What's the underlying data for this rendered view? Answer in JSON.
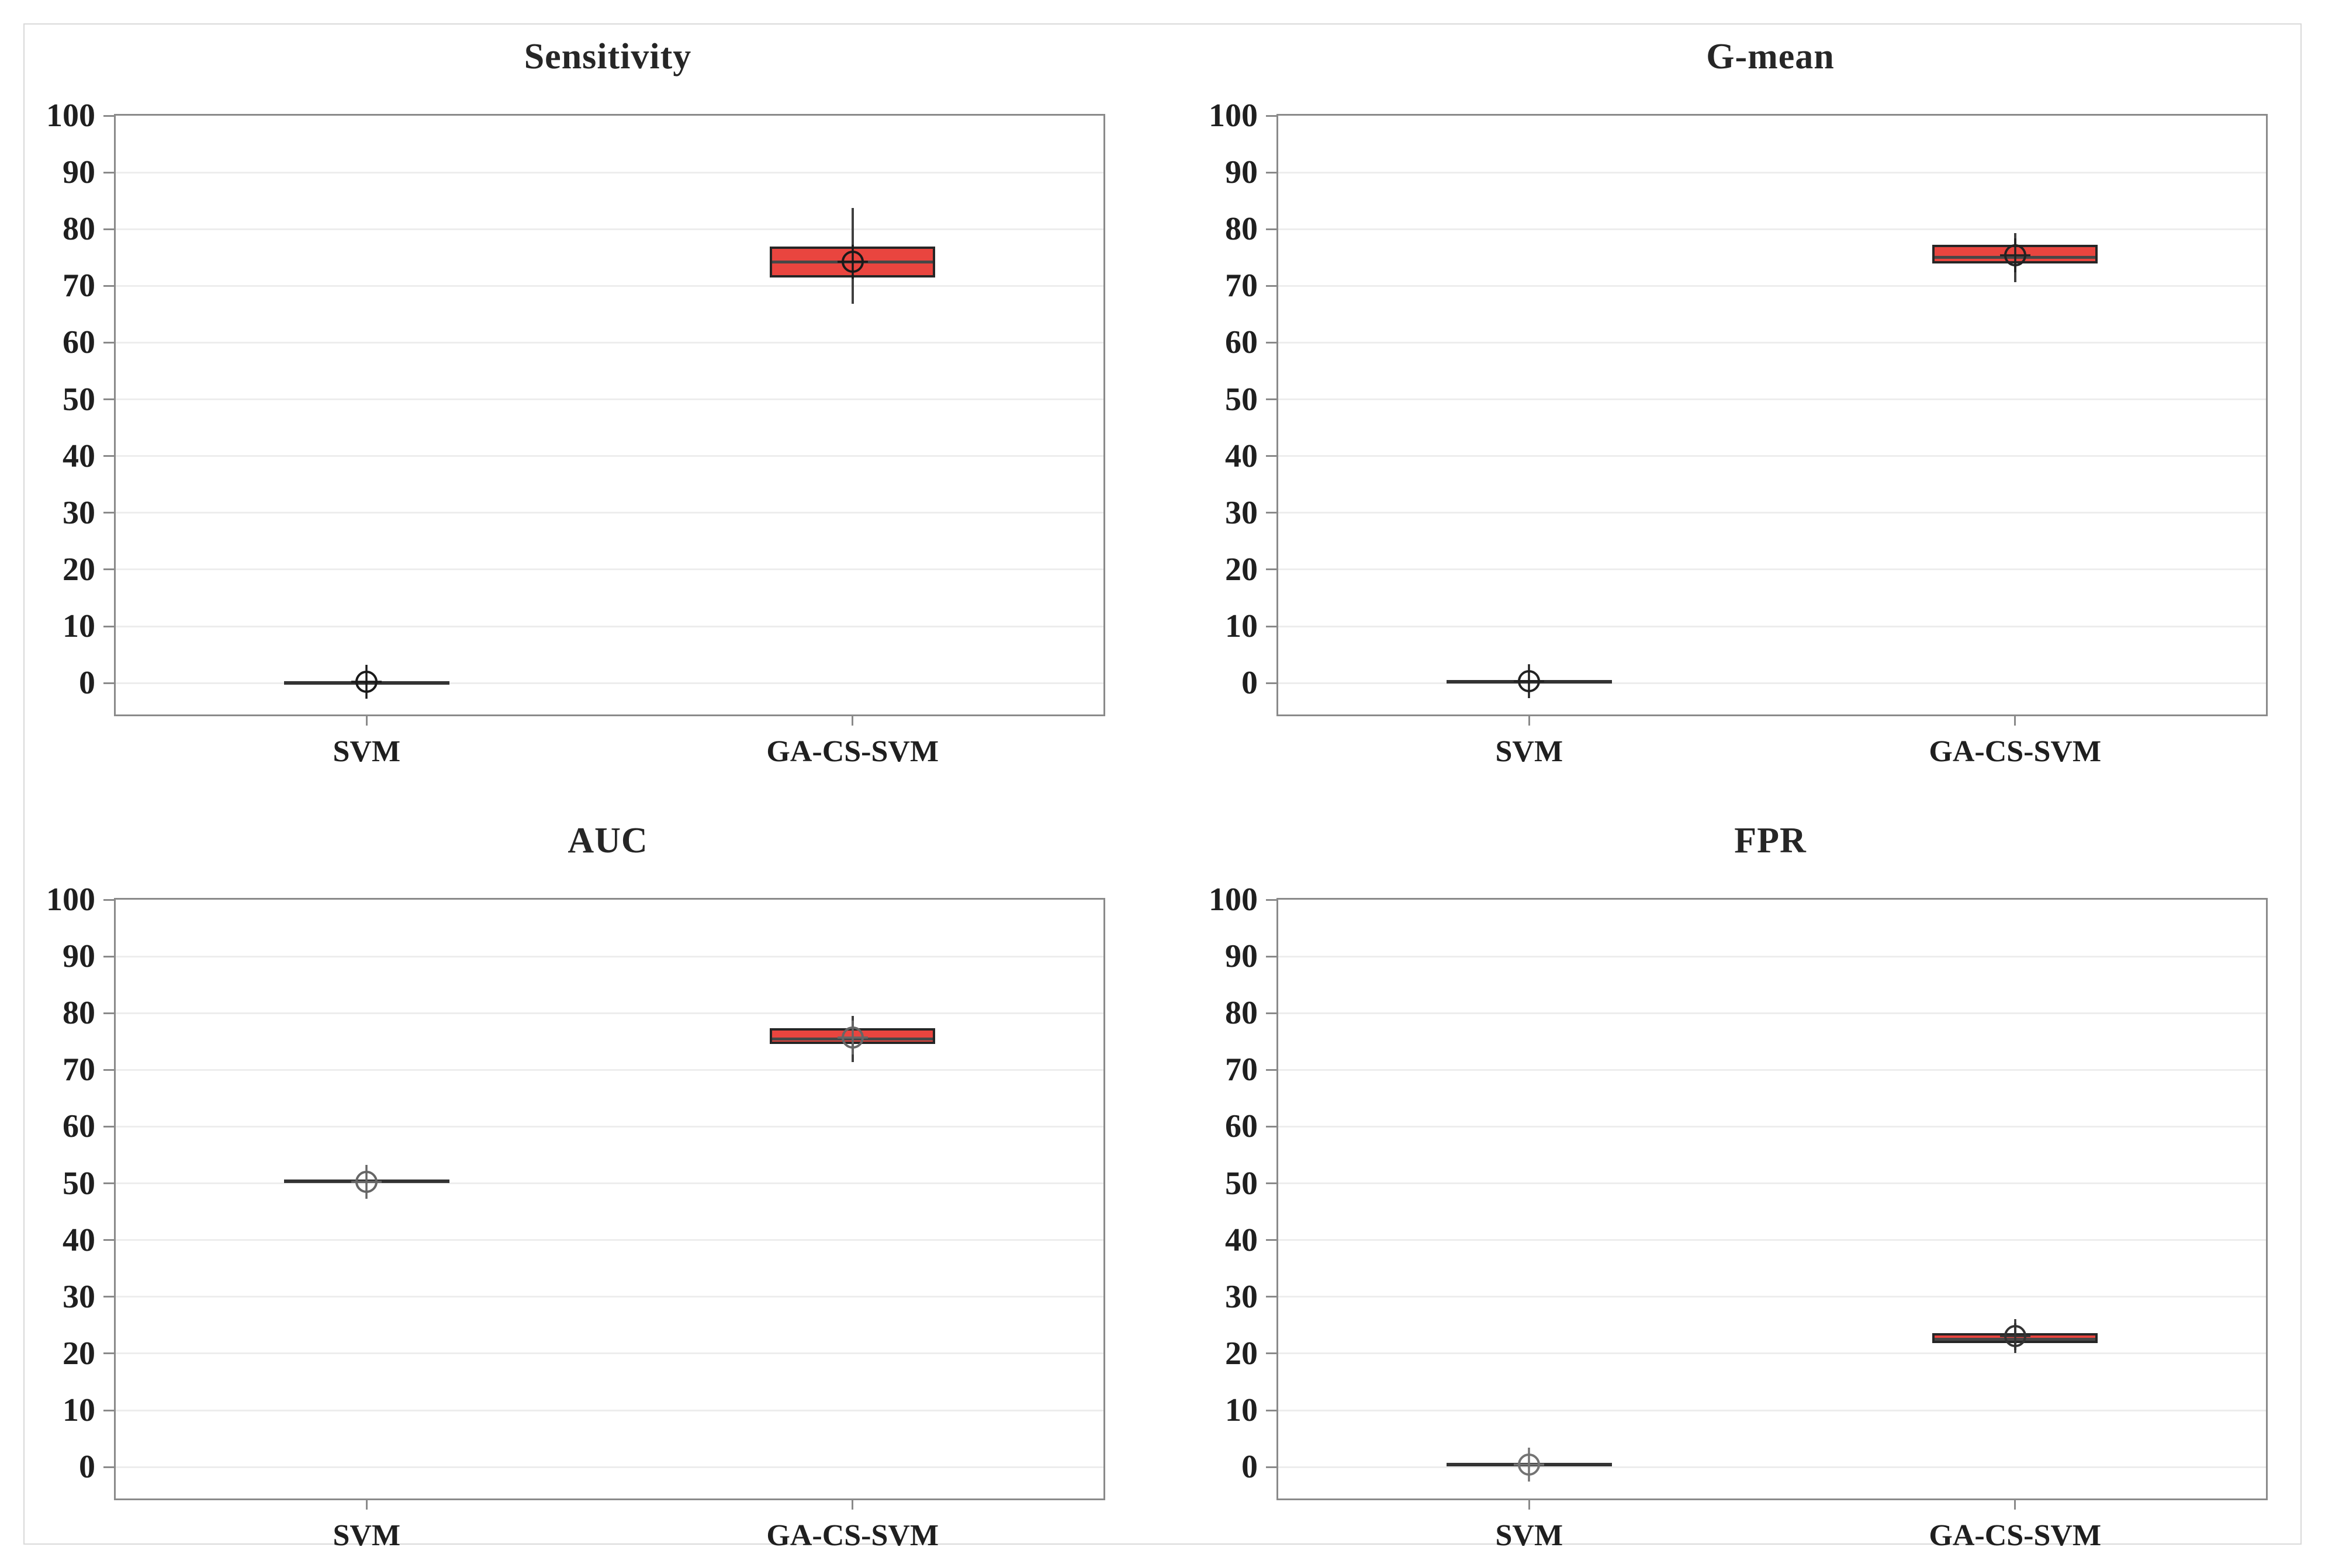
{
  "figure": {
    "background": "#ffffff",
    "border_color": "#d9d9d9",
    "layout": {
      "rows": 2,
      "cols": 2
    }
  },
  "styles": {
    "box_fill": "#e9453f",
    "box_border": "#262626",
    "median_color": "#474747",
    "whisker_color": "#404040",
    "grid_color": "#ededed",
    "axis_color": "#8a8a8a",
    "text_color": "#1f1f1f",
    "title_color": "#262626"
  },
  "chart_data": [
    {
      "type": "box",
      "title": "Sensitivity",
      "categories": [
        "SVM",
        "GA-CS-SVM"
      ],
      "ylim": [
        0,
        100
      ],
      "ytick_step": 10,
      "grid": true,
      "legend": "none",
      "series": [
        {
          "category": "SVM",
          "whisker_low": 0,
          "q1": 0,
          "median": 0,
          "q3": 0,
          "whisker_high": 0,
          "mean": 0.2,
          "marker_color": "#1a1a1a"
        },
        {
          "category": "GA-CS-SVM",
          "whisker_low": 66.8,
          "q1": 71.5,
          "median": 74.2,
          "q3": 76.9,
          "whisker_high": 83.7,
          "mean": 74.3,
          "marker_color": "#1a1a1a"
        }
      ]
    },
    {
      "type": "box",
      "title": "G-mean",
      "categories": [
        "SVM",
        "GA-CS-SVM"
      ],
      "ylim": [
        0,
        100
      ],
      "ytick_step": 10,
      "grid": true,
      "legend": "none",
      "series": [
        {
          "category": "SVM",
          "whisker_low": 0,
          "q1": 0,
          "median": 0.2,
          "q3": 0,
          "whisker_high": 0,
          "mean": 0.3,
          "marker_color": "#222222"
        },
        {
          "category": "GA-CS-SVM",
          "whisker_low": 70.7,
          "q1": 74.0,
          "median": 75.0,
          "q3": 77.2,
          "whisker_high": 79.3,
          "mean": 75.4,
          "marker_color": "#222222"
        }
      ]
    },
    {
      "type": "box",
      "title": "AUC",
      "categories": [
        "SVM",
        "GA-CS-SVM"
      ],
      "ylim": [
        0,
        100
      ],
      "ytick_step": 10,
      "grid": true,
      "legend": "none",
      "series": [
        {
          "category": "SVM",
          "whisker_low": 50.4,
          "q1": 50.4,
          "median": 50.4,
          "q3": 50.4,
          "whisker_high": 50.4,
          "mean": 50.3,
          "marker_color": "#666666"
        },
        {
          "category": "GA-CS-SVM",
          "whisker_low": 71.4,
          "q1": 74.6,
          "median": 75.4,
          "q3": 77.3,
          "whisker_high": 79.5,
          "mean": 75.7,
          "marker_color": "#666666"
        }
      ]
    },
    {
      "type": "box",
      "title": "FPR",
      "categories": [
        "SVM",
        "GA-CS-SVM"
      ],
      "ylim": [
        0,
        100
      ],
      "ytick_step": 10,
      "grid": true,
      "legend": "none",
      "series": [
        {
          "category": "SVM",
          "whisker_low": 0.4,
          "q1": 0.4,
          "median": 0.4,
          "q3": 0.4,
          "whisker_high": 0.4,
          "mean": 0.4,
          "marker_color": "#737373"
        },
        {
          "category": "GA-CS-SVM",
          "whisker_low": 20.6,
          "q1": 21.8,
          "median": 22.3,
          "q3": 23.6,
          "whisker_high": 25.4,
          "mean": 23.1,
          "marker_color": "#333333"
        }
      ]
    }
  ]
}
